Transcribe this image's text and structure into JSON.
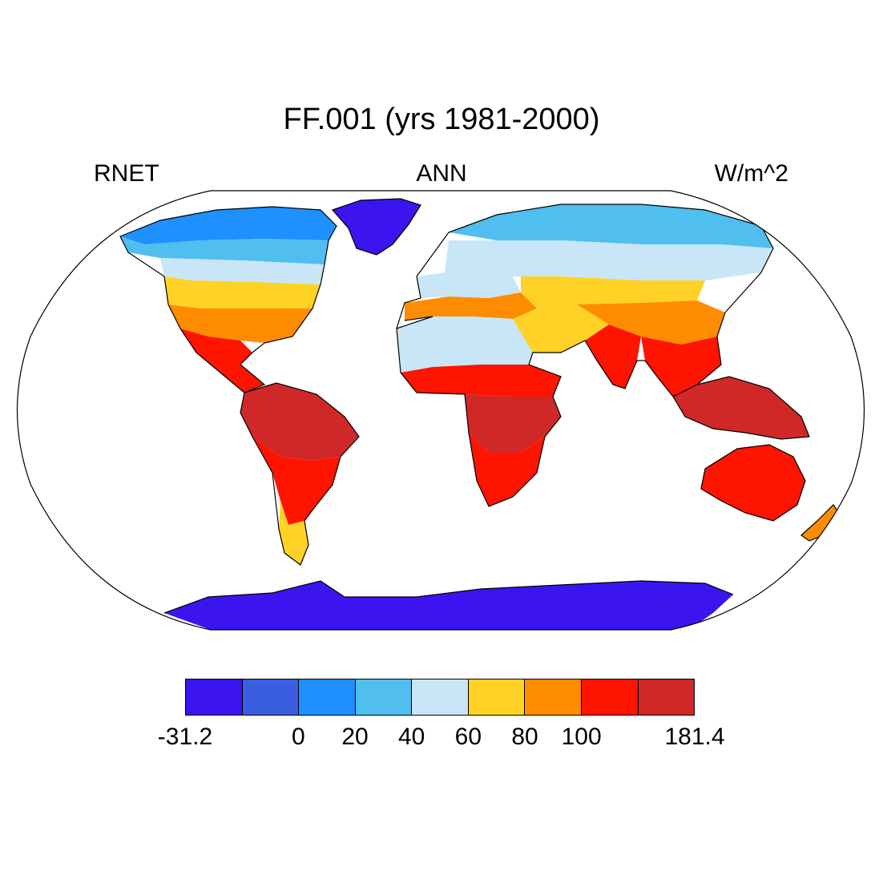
{
  "title": "FF.001 (yrs 1981-2000)",
  "left_label": "RNET",
  "center_label": "ANN",
  "right_label": "W/m^2",
  "colorbar": {
    "colors": [
      "#3c14f0",
      "#3b5ee0",
      "#1e90ff",
      "#50beee",
      "#c8e6f8",
      "#ffd225",
      "#ff8c00",
      "#ff1400",
      "#d02828"
    ],
    "labels": [
      "-31.2",
      "0",
      "20",
      "40",
      "60",
      "80",
      "100",
      "181.4"
    ]
  },
  "map": {
    "projection": "Robinson",
    "ocean_color": "#ffffff",
    "region_values": {
      "antarctica": -25,
      "greenland": -25,
      "arctic_canada": 5,
      "northern_canada": 25,
      "southern_canada": 50,
      "usa_north": 70,
      "usa_south": 95,
      "central_america": 120,
      "amazon": 140,
      "south_america_south": 100,
      "patagonia": 60,
      "siberia": 20,
      "north_russia": 40,
      "europe": 55,
      "mediterranean": 80,
      "sahara": 45,
      "sahel": 100,
      "central_africa": 130,
      "southern_africa": 110,
      "arabia": 70,
      "central_asia": 60,
      "india": 115,
      "southeast_asia": 125,
      "china": 90,
      "indonesia": 140,
      "australia": 105,
      "new_zealand": 95
    }
  }
}
